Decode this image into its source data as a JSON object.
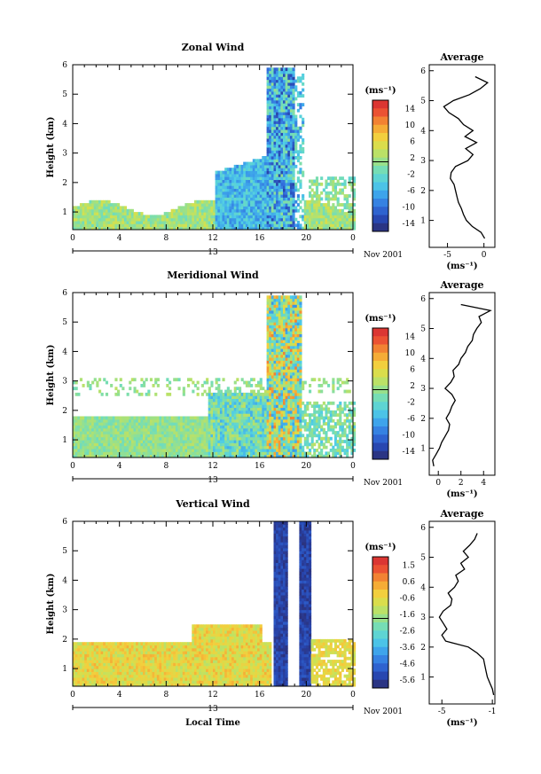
{
  "chart_data": [
    {
      "type": "heatmap",
      "title": "Zonal Wind",
      "ylabel": "Height (km)",
      "x_ticks": [
        "0",
        "4",
        "8",
        "12",
        "16",
        "20",
        "0"
      ],
      "xlim": [
        0,
        24
      ],
      "y_ticks": [
        "1",
        "2",
        "3",
        "4",
        "5",
        "6"
      ],
      "ylim": [
        0.4,
        6
      ],
      "date_center": "13",
      "date_right": "Nov 2001",
      "colorbar": {
        "unit": "(ms⁻¹)",
        "ticks": [
          "14",
          "10",
          "6",
          "2",
          "-2",
          "-6",
          "-10",
          "-14"
        ],
        "range": [
          -16,
          16
        ]
      },
      "average": {
        "title": "Average",
        "xlabel": "(ms⁻¹)",
        "x_ticks": [
          "-5",
          "0"
        ],
        "xlim": [
          -7.5,
          1.5
        ],
        "heights": [
          0.4,
          0.6,
          0.8,
          1.0,
          1.2,
          1.4,
          1.6,
          1.8,
          2.0,
          2.2,
          2.4,
          2.6,
          2.8,
          3.0,
          3.2,
          3.4,
          3.6,
          3.8,
          4.0,
          4.2,
          4.4,
          4.6,
          4.8,
          5.0,
          5.2,
          5.4,
          5.6,
          5.8
        ],
        "values": [
          0.1,
          -0.4,
          -1.6,
          -2.4,
          -2.8,
          -3.1,
          -3.5,
          -3.7,
          -3.9,
          -4.1,
          -4.6,
          -4.5,
          -3.9,
          -2.2,
          -1.5,
          -2.5,
          -1.0,
          -2.6,
          -1.5,
          -2.8,
          -3.5,
          -4.8,
          -5.5,
          -4.2,
          -2.0,
          -0.5,
          0.5,
          -1.2
        ]
      }
    },
    {
      "type": "heatmap",
      "title": "Meridional Wind",
      "ylabel": "Height (km)",
      "x_ticks": [
        "0",
        "4",
        "8",
        "12",
        "16",
        "20",
        "0"
      ],
      "xlim": [
        0,
        24
      ],
      "y_ticks": [
        "1",
        "2",
        "3",
        "4",
        "5",
        "6"
      ],
      "ylim": [
        0.4,
        6
      ],
      "date_center": "13",
      "date_right": "Nov 2001",
      "colorbar": {
        "unit": "(ms⁻¹)",
        "ticks": [
          "14",
          "10",
          "6",
          "2",
          "-2",
          "-6",
          "-10",
          "-14"
        ],
        "range": [
          -16,
          16
        ]
      },
      "average": {
        "title": "Average",
        "xlabel": "(ms⁻¹)",
        "x_ticks": [
          "0",
          "2",
          "4"
        ],
        "xlim": [
          -0.8,
          5.0
        ],
        "heights": [
          0.4,
          0.6,
          0.8,
          1.0,
          1.2,
          1.4,
          1.6,
          1.8,
          2.0,
          2.2,
          2.4,
          2.6,
          2.8,
          3.0,
          3.2,
          3.4,
          3.6,
          3.8,
          4.0,
          4.2,
          4.4,
          4.6,
          4.8,
          5.0,
          5.2,
          5.4,
          5.6,
          5.8
        ],
        "values": [
          -0.4,
          -0.5,
          -0.2,
          0.1,
          0.3,
          0.6,
          0.9,
          1.0,
          0.7,
          1.0,
          1.2,
          1.5,
          1.2,
          0.6,
          1.1,
          1.4,
          1.3,
          1.8,
          2.0,
          2.4,
          2.6,
          3.0,
          3.1,
          3.4,
          3.8,
          3.6,
          4.6,
          2.0
        ]
      }
    },
    {
      "type": "heatmap",
      "title": "Vertical Wind",
      "xlabel": "Local Time",
      "ylabel": "Height (km)",
      "x_ticks": [
        "0",
        "4",
        "8",
        "12",
        "16",
        "20",
        "0"
      ],
      "xlim": [
        0,
        24
      ],
      "y_ticks": [
        "1",
        "2",
        "3",
        "4",
        "5",
        "6"
      ],
      "ylim": [
        0.4,
        6
      ],
      "date_center": "13",
      "date_right": "Nov 2001",
      "colorbar": {
        "unit": "(ms⁻¹)",
        "ticks": [
          "1.5",
          "0.6",
          "-0.6",
          "-1.6",
          "-2.6",
          "-3.6",
          "-4.6",
          "-5.6"
        ],
        "range": [
          -6,
          2
        ]
      },
      "average": {
        "title": "Average",
        "xlabel": "(ms⁻¹)",
        "x_ticks": [
          "-5",
          "-1"
        ],
        "xlim": [
          -6.0,
          -0.8
        ],
        "heights": [
          0.4,
          0.6,
          0.8,
          1.0,
          1.2,
          1.4,
          1.6,
          1.8,
          2.0,
          2.2,
          2.4,
          2.6,
          2.8,
          3.0,
          3.2,
          3.4,
          3.6,
          3.8,
          4.0,
          4.2,
          4.4,
          4.6,
          4.8,
          5.0,
          5.2,
          5.4,
          5.6,
          5.8
        ],
        "values": [
          -0.9,
          -1.0,
          -1.2,
          -1.4,
          -1.5,
          -1.6,
          -1.7,
          -2.2,
          -2.9,
          -4.7,
          -5.0,
          -4.6,
          -4.9,
          -5.2,
          -4.9,
          -4.3,
          -4.2,
          -4.5,
          -4.0,
          -3.7,
          -3.9,
          -3.2,
          -3.5,
          -2.9,
          -3.3,
          -2.8,
          -2.4,
          -2.2
        ]
      }
    }
  ]
}
